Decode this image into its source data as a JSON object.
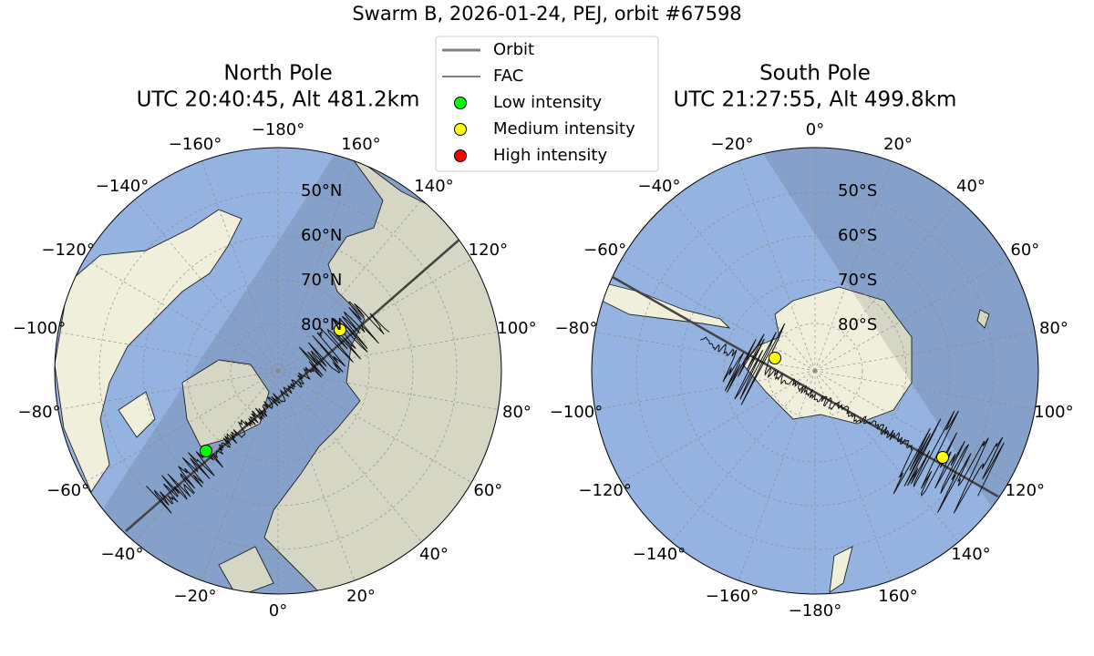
{
  "title": "Swarm B, 2026-01-24, PEJ, orbit #67598",
  "legend": [
    {
      "label": "Orbit",
      "color": "#808080",
      "kind": "line"
    },
    {
      "label": "FAC",
      "color": "#000000",
      "kind": "thin-line"
    },
    {
      "label": "Low intensity",
      "color": "#00ff00",
      "kind": "dot"
    },
    {
      "label": "Medium intensity",
      "color": "#ffff00",
      "kind": "dot"
    },
    {
      "label": "High intensity",
      "color": "#ff0000",
      "kind": "dot"
    }
  ],
  "maps": [
    {
      "title": "North Pole",
      "subtitle": "UTC 20:40:45, Alt 481.2km",
      "lon_labels": [
        "−180°",
        "−160°",
        "−140°",
        "−120°",
        "−100°",
        "−80°",
        "−60°",
        "−40°",
        "−20°",
        "0°",
        "20°",
        "40°",
        "60°",
        "80°",
        "100°",
        "120°",
        "140°",
        "160°"
      ],
      "lat_labels": [
        "50°N",
        "60°N",
        "70°N",
        "80°N"
      ]
    },
    {
      "title": "South Pole",
      "subtitle": "UTC 21:27:55, Alt 499.8km",
      "lon_labels": [
        "0°",
        "20°",
        "40°",
        "60°",
        "80°",
        "100°",
        "120°",
        "140°",
        "160°",
        "−180°",
        "−160°",
        "−140°",
        "−120°",
        "−100°",
        "−80°",
        "−60°",
        "−40°",
        "−20°"
      ],
      "lat_labels": [
        "50°S",
        "60°S",
        "70°S",
        "80°S"
      ]
    }
  ]
}
